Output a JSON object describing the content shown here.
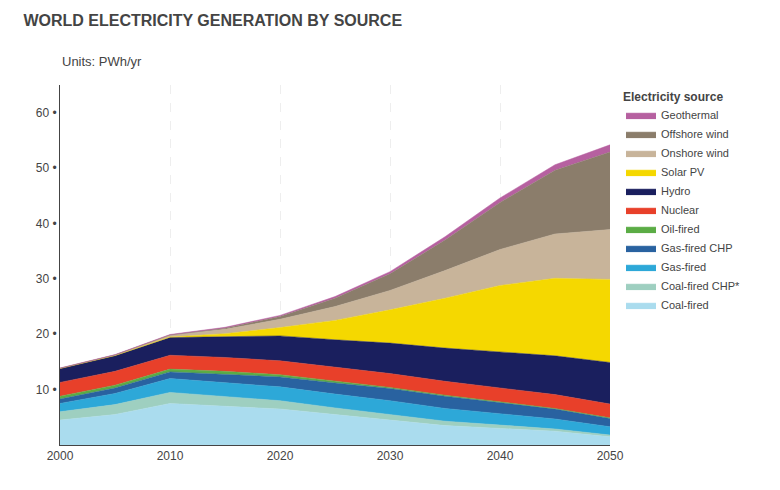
{
  "chart_data": {
    "type": "area",
    "title": "WORLD ELECTRICITY GENERATION BY SOURCE",
    "subtitle": "Units: PWh/yr",
    "x": [
      2000,
      2005,
      2010,
      2015,
      2020,
      2025,
      2030,
      2035,
      2040,
      2045,
      2050
    ],
    "series": [
      {
        "name": "Coal-fired",
        "color": "#aadcee",
        "values": [
          4.5,
          5.5,
          7.5,
          7.0,
          6.5,
          5.5,
          4.5,
          3.5,
          3.0,
          2.5,
          1.5
        ]
      },
      {
        "name": "Coal-fired CHP*",
        "color": "#9ecfc0",
        "values": [
          1.5,
          1.8,
          2.0,
          1.8,
          1.5,
          1.2,
          1.0,
          0.8,
          0.6,
          0.4,
          0.3
        ]
      },
      {
        "name": "Gas-fired",
        "color": "#2da8d8",
        "values": [
          1.5,
          2.0,
          2.5,
          2.5,
          2.5,
          2.5,
          2.5,
          2.3,
          2.0,
          1.8,
          1.5
        ]
      },
      {
        "name": "Gas-fired CHP",
        "color": "#2962a0",
        "values": [
          0.8,
          1.0,
          1.2,
          1.5,
          1.8,
          2.0,
          2.2,
          2.2,
          2.0,
          1.8,
          1.5
        ]
      },
      {
        "name": "Oil-fired",
        "color": "#5bac45",
        "values": [
          0.5,
          0.5,
          0.5,
          0.5,
          0.4,
          0.3,
          0.2,
          0.2,
          0.2,
          0.1,
          0.1
        ]
      },
      {
        "name": "Nuclear",
        "color": "#e8402a",
        "values": [
          2.5,
          2.5,
          2.5,
          2.5,
          2.5,
          2.5,
          2.5,
          2.5,
          2.5,
          2.5,
          2.5
        ]
      },
      {
        "name": "Hydro",
        "color": "#1a1f5e",
        "values": [
          2.5,
          2.8,
          3.2,
          3.8,
          4.5,
          5.0,
          5.5,
          6.0,
          6.5,
          7.0,
          7.5
        ]
      },
      {
        "name": "Solar PV",
        "color": "#f5d800",
        "values": [
          0.0,
          0.05,
          0.1,
          0.5,
          1.5,
          3.5,
          6.0,
          9.0,
          12.0,
          14.0,
          15.0
        ]
      },
      {
        "name": "Onshore wind",
        "color": "#c8b49a",
        "values": [
          0.05,
          0.1,
          0.3,
          0.8,
          1.5,
          2.5,
          3.5,
          5.0,
          6.5,
          8.0,
          9.0
        ]
      },
      {
        "name": "Offshore wind",
        "color": "#8b7d6b",
        "values": [
          0.0,
          0.0,
          0.05,
          0.2,
          0.5,
          1.5,
          3.0,
          5.5,
          8.5,
          11.5,
          14.0
        ]
      },
      {
        "name": "Geothermal",
        "color": "#b660a0",
        "values": [
          0.05,
          0.07,
          0.1,
          0.15,
          0.2,
          0.3,
          0.4,
          0.6,
          0.8,
          1.0,
          1.3
        ]
      }
    ],
    "xlim": [
      2000,
      2050
    ],
    "xticks": [
      2000,
      2010,
      2020,
      2030,
      2040,
      2050
    ],
    "ylim": [
      0,
      65
    ],
    "yticks": [
      {
        "value": 10,
        "label": "10 •"
      },
      {
        "value": 20,
        "label": "20 •"
      },
      {
        "value": 30,
        "label": "30 •"
      },
      {
        "value": 40,
        "label": "40 •"
      },
      {
        "value": 50,
        "label": "50 •"
      },
      {
        "value": 60,
        "label": "60 •"
      }
    ],
    "stacked": true,
    "grid": "x",
    "legend": "right",
    "legend_title": "Electricity source"
  }
}
